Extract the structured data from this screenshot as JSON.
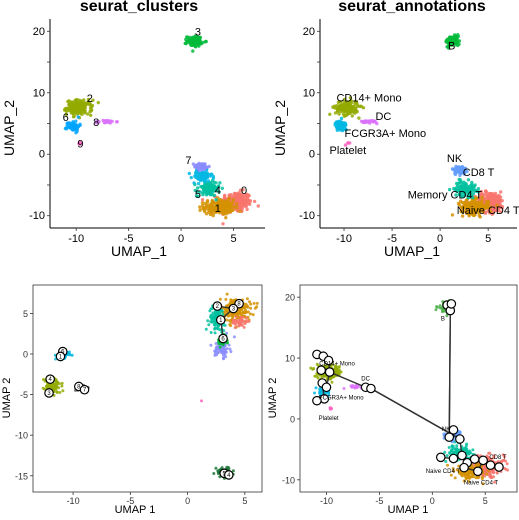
{
  "chart_data": [
    {
      "type": "scatter",
      "title": "seurat_clusters",
      "xlabel": "UMAP_1",
      "ylabel": "UMAP_2",
      "xlim": [
        -12.5,
        8
      ],
      "ylim": [
        -12,
        22
      ],
      "xticks": [
        -10,
        -5,
        0,
        5
      ],
      "yticks": [
        -10,
        -5,
        0,
        5,
        10,
        15,
        20
      ],
      "ytick_labels": [
        "-10",
        "",
        "0",
        "",
        "10",
        "",
        "20"
      ],
      "clusters": [
        {
          "label": "0",
          "color": "#F8766D",
          "cx": 5.2,
          "cy": -7.8,
          "sx": 1.3,
          "sy": 1.4,
          "n": 240
        },
        {
          "label": "1",
          "color": "#D39200",
          "cx": 3.6,
          "cy": -8.6,
          "sx": 1.2,
          "sy": 1.0,
          "n": 180
        },
        {
          "label": "2",
          "color": "#93AA00",
          "cx": -9.7,
          "cy": 7.6,
          "sx": 1.0,
          "sy": 1.0,
          "n": 150
        },
        {
          "label": "3",
          "color": "#00BA38",
          "cx": 1.3,
          "cy": 18.4,
          "sx": 0.6,
          "sy": 0.7,
          "n": 90
        },
        {
          "label": "4",
          "color": "#00C19F",
          "cx": 2.6,
          "cy": -5.6,
          "sx": 0.9,
          "sy": 1.0,
          "n": 110
        },
        {
          "label": "5",
          "color": "#00B9E3",
          "cx": 2.0,
          "cy": -3.6,
          "sx": 0.8,
          "sy": 0.8,
          "n": 70
        },
        {
          "label": "6",
          "color": "#00A5FF",
          "cx": -10.3,
          "cy": 4.6,
          "sx": 0.5,
          "sy": 0.7,
          "n": 60
        },
        {
          "label": "7",
          "color": "#8A8CFF",
          "cx": 2.0,
          "cy": -2.0,
          "sx": 0.6,
          "sy": 0.5,
          "n": 45
        },
        {
          "label": "8",
          "color": "#DB72FB",
          "cx": -7.2,
          "cy": 5.3,
          "sx": 0.8,
          "sy": 0.2,
          "n": 22
        },
        {
          "label": "9",
          "color": "#FF61C3",
          "cx": -9.7,
          "cy": 1.8,
          "sx": 0.2,
          "sy": 0.2,
          "n": 4
        }
      ],
      "labels": [
        {
          "text": "0",
          "x": 6.0,
          "y": -6.5
        },
        {
          "text": "1",
          "x": 3.5,
          "y": -9.4
        },
        {
          "text": "2",
          "x": -8.7,
          "y": 8.5
        },
        {
          "text": "3",
          "x": 1.6,
          "y": 19.3
        },
        {
          "text": "4",
          "x": 3.5,
          "y": -6.5
        },
        {
          "text": "5",
          "x": 1.6,
          "y": -7.1
        },
        {
          "text": "6",
          "x": -11.0,
          "y": 5.4
        },
        {
          "text": "7",
          "x": 0.7,
          "y": -1.6
        },
        {
          "text": "8",
          "x": -8.1,
          "y": 4.6
        },
        {
          "text": "9",
          "x": -9.6,
          "y": 1.1
        }
      ]
    },
    {
      "type": "scatter",
      "title": "seurat_annotations",
      "xlabel": "UMAP_1",
      "ylabel": "UMAP_2",
      "xlim": [
        -12.5,
        8
      ],
      "ylim": [
        -12,
        22
      ],
      "xticks": [
        -10,
        -5,
        0,
        5
      ],
      "yticks": [
        -10,
        -5,
        0,
        5,
        10,
        15,
        20
      ],
      "ytick_labels": [
        "-10",
        "",
        "0",
        "",
        "10",
        "",
        "20"
      ],
      "clusters": [
        {
          "label": "Naive CD4 T",
          "color": "#F8766D",
          "cx": 5.2,
          "cy": -7.8,
          "sx": 1.3,
          "sy": 1.4,
          "n": 240
        },
        {
          "label": "Memory CD4 T",
          "color": "#D39200",
          "cx": 3.6,
          "cy": -8.6,
          "sx": 1.2,
          "sy": 1.0,
          "n": 180
        },
        {
          "label": "CD14+ Mono",
          "color": "#93AA00",
          "cx": -9.7,
          "cy": 7.6,
          "sx": 1.0,
          "sy": 1.0,
          "n": 150
        },
        {
          "label": "B",
          "color": "#00BA38",
          "cx": 1.3,
          "cy": 18.4,
          "sx": 0.6,
          "sy": 0.7,
          "n": 90
        },
        {
          "label": "CD8 T",
          "color": "#00C19F",
          "cx": 2.6,
          "cy": -5.6,
          "sx": 0.9,
          "sy": 1.0,
          "n": 110
        },
        {
          "label": "FCGR3A+ Mono",
          "color": "#00B9E3",
          "cx": -10.3,
          "cy": 4.6,
          "sx": 0.5,
          "sy": 0.7,
          "n": 60
        },
        {
          "label": "NK",
          "color": "#619CFF",
          "cx": 2.0,
          "cy": -2.6,
          "sx": 0.6,
          "sy": 0.6,
          "n": 70
        },
        {
          "label": "DC",
          "color": "#DB72FB",
          "cx": -7.2,
          "cy": 5.3,
          "sx": 0.8,
          "sy": 0.2,
          "n": 22
        },
        {
          "label": "Platelet",
          "color": "#FF61C3",
          "cx": -9.7,
          "cy": 1.8,
          "sx": 0.2,
          "sy": 0.2,
          "n": 4
        }
      ],
      "labels": [
        {
          "text": "B",
          "x": 1.2,
          "y": 17.0
        },
        {
          "text": "CD14+ Mono",
          "x": -7.4,
          "y": 8.6
        },
        {
          "text": "DC",
          "x": -5.9,
          "y": 5.6
        },
        {
          "text": "FCGR3A+ Mono",
          "x": -5.7,
          "y": 2.8
        },
        {
          "text": "Platelet",
          "x": -9.6,
          "y": 0.0
        },
        {
          "text": "NK",
          "x": 1.5,
          "y": -1.3
        },
        {
          "text": "CD8 T",
          "x": 4.0,
          "y": -3.5
        },
        {
          "text": "Memory CD4 T",
          "x": 0.5,
          "y": -7.2
        },
        {
          "text": "Naive CD4 T",
          "x": 5.0,
          "y": -9.7
        }
      ]
    },
    {
      "type": "scatter",
      "title": "",
      "xlabel": "UMAP 1",
      "ylabel": "UMAP 2",
      "xlim": [
        -13.5,
        6.5
      ],
      "ylim": [
        -17,
        8.5
      ],
      "xticks": [
        -10,
        -5,
        0,
        5
      ],
      "yticks": [
        -15,
        -10,
        -5,
        0,
        5
      ],
      "clusters": [
        {
          "color": "#D39200",
          "cx": 4.2,
          "cy": 5.4,
          "sx": 1.1,
          "sy": 1.2,
          "n": 200
        },
        {
          "color": "#00C19F",
          "cx": 2.6,
          "cy": 4.4,
          "sx": 0.6,
          "sy": 1.3,
          "n": 100
        },
        {
          "color": "#F8766D",
          "cx": 4.6,
          "cy": 4.0,
          "sx": 0.6,
          "sy": 0.6,
          "n": 40
        },
        {
          "color": "#8A8CFF",
          "cx": 3.0,
          "cy": 0.8,
          "sx": 0.5,
          "sy": 1.0,
          "n": 80
        },
        {
          "color": "#00BA38",
          "cx": 3.0,
          "cy": 1.6,
          "sx": 0.4,
          "sy": 0.5,
          "n": 30
        },
        {
          "color": "#93AA00",
          "cx": -11.8,
          "cy": -3.9,
          "sx": 0.6,
          "sy": 0.8,
          "n": 110
        },
        {
          "color": "#00B9E3",
          "cx": -10.8,
          "cy": -0.2,
          "sx": 0.4,
          "sy": 0.4,
          "n": 30
        },
        {
          "color": "#666666",
          "cx": -9.3,
          "cy": -4.2,
          "sx": 0.6,
          "sy": 0.3,
          "n": 18
        },
        {
          "color": "#1B7837",
          "cx": 3.2,
          "cy": -14.6,
          "sx": 0.6,
          "sy": 0.5,
          "n": 80
        },
        {
          "color": "#FF61C3",
          "cx": 1.2,
          "cy": -5.7,
          "sx": 0.05,
          "sy": 0.05,
          "n": 1
        }
      ],
      "nodes": [
        {
          "text": "2",
          "x": 2.6,
          "y": 5.9
        },
        {
          "text": "8",
          "x": 4.5,
          "y": 6.2
        },
        {
          "text": "3",
          "x": 4.0,
          "y": 5.6
        },
        {
          "text": "1",
          "x": 2.9,
          "y": 4.2
        },
        {
          "text": "6",
          "x": 3.1,
          "y": 1.9
        },
        {
          "text": "6",
          "x": -10.9,
          "y": 0.3
        },
        {
          "text": "1",
          "x": -11.1,
          "y": -0.3
        },
        {
          "text": "4",
          "x": -12.0,
          "y": -3.1
        },
        {
          "text": "3",
          "x": -12.1,
          "y": -4.8
        },
        {
          "text": "8",
          "x": -9.5,
          "y": -4.0
        },
        {
          "text": "7",
          "x": -9.0,
          "y": -4.4
        },
        {
          "text": "5",
          "x": 3.2,
          "y": -14.7
        },
        {
          "text": "4",
          "x": 3.6,
          "y": -14.9
        }
      ],
      "edges": [
        [
          0,
          2
        ],
        [
          2,
          3
        ],
        [
          3,
          4
        ]
      ]
    },
    {
      "type": "scatter",
      "title": "",
      "xlabel": "UMAP 1",
      "ylabel": "UMAP 2",
      "xlim": [
        -12.5,
        8
      ],
      "ylim": [
        -12,
        22
      ],
      "xticks": [
        -10,
        -5,
        0,
        5
      ],
      "yticks": [
        -10,
        0,
        10,
        20
      ],
      "clusters": [
        {
          "color": "#F8766D",
          "cx": 5.2,
          "cy": -7.8,
          "sx": 1.3,
          "sy": 1.4,
          "n": 220
        },
        {
          "color": "#D39200",
          "cx": 3.6,
          "cy": -8.6,
          "sx": 1.2,
          "sy": 1.0,
          "n": 160
        },
        {
          "color": "#93AA00",
          "cx": -9.7,
          "cy": 7.6,
          "sx": 1.0,
          "sy": 1.0,
          "n": 140
        },
        {
          "color": "#4DAF4A",
          "cx": 1.3,
          "cy": 18.4,
          "sx": 0.6,
          "sy": 0.7,
          "n": 80
        },
        {
          "color": "#00C19F",
          "cx": 2.6,
          "cy": -5.6,
          "sx": 0.9,
          "sy": 1.0,
          "n": 100
        },
        {
          "color": "#00B9E3",
          "cx": -10.3,
          "cy": 4.6,
          "sx": 0.5,
          "sy": 0.7,
          "n": 55
        },
        {
          "color": "#619CFF",
          "cx": 2.0,
          "cy": -2.6,
          "sx": 0.6,
          "sy": 0.6,
          "n": 60
        },
        {
          "color": "#DB72FB",
          "cx": -7.2,
          "cy": 5.3,
          "sx": 0.8,
          "sy": 0.2,
          "n": 20
        },
        {
          "color": "#FF61C3",
          "cx": -9.7,
          "cy": 1.8,
          "sx": 0.2,
          "sy": 0.2,
          "n": 4
        }
      ],
      "labels": [
        {
          "text": "B",
          "x": 1.0,
          "y": 16.2
        },
        {
          "text": "CD14+ Mono",
          "x": -9.0,
          "y": 8.8
        },
        {
          "text": "DC",
          "x": -6.3,
          "y": 6.3
        },
        {
          "text": "FCGR3A+ Mono",
          "x": -8.6,
          "y": 3.2
        },
        {
          "text": "Platelet",
          "x": -9.8,
          "y": -0.2
        },
        {
          "text": "NK",
          "x": 1.3,
          "y": -2.0
        },
        {
          "text": "CD8 T",
          "x": 6.2,
          "y": -6.6
        },
        {
          "text": "Naive CD4 T",
          "x": 1.0,
          "y": -8.9
        },
        {
          "text": "Naive CD4 T",
          "x": 4.6,
          "y": -10.8
        }
      ],
      "nodes": [
        {
          "x": 1.4,
          "y": 18.7
        },
        {
          "x": 1.7,
          "y": 17.8
        },
        {
          "x": 1.8,
          "y": 18.9
        },
        {
          "x": 2.0,
          "y": -1.8
        },
        {
          "x": -10.9,
          "y": 10.6
        },
        {
          "x": -10.3,
          "y": 10.3
        },
        {
          "x": -9.8,
          "y": 9.6
        },
        {
          "x": -10.5,
          "y": 8.0
        },
        {
          "x": -9.7,
          "y": 7.7
        },
        {
          "x": -10.4,
          "y": 5.9
        },
        {
          "x": -10.0,
          "y": 5.2
        },
        {
          "x": -10.2,
          "y": 3.3
        },
        {
          "x": -10.9,
          "y": 3.0
        },
        {
          "x": -6.3,
          "y": 5.2
        },
        {
          "x": -5.8,
          "y": 5.0
        },
        {
          "x": 1.6,
          "y": -3.0
        },
        {
          "x": 2.6,
          "y": -3.3
        },
        {
          "x": 0.8,
          "y": -6.3
        },
        {
          "x": 2.0,
          "y": -6.5
        },
        {
          "x": 2.8,
          "y": -6.0
        },
        {
          "x": 3.3,
          "y": -7.2
        },
        {
          "x": 4.0,
          "y": -6.6
        },
        {
          "x": 4.8,
          "y": -6.8
        },
        {
          "x": 5.5,
          "y": -7.6
        },
        {
          "x": 6.3,
          "y": -7.9
        },
        {
          "x": 4.3,
          "y": -8.6
        },
        {
          "x": 3.0,
          "y": -8.0
        }
      ],
      "edges": [
        [
          4,
          5
        ],
        [
          5,
          6
        ],
        [
          6,
          8
        ],
        [
          8,
          7
        ],
        [
          8,
          10
        ],
        [
          10,
          9
        ],
        [
          9,
          11
        ],
        [
          11,
          12
        ],
        [
          8,
          13
        ],
        [
          13,
          14
        ],
        [
          14,
          16
        ],
        [
          1,
          15
        ],
        [
          16,
          19
        ],
        [
          19,
          18
        ],
        [
          18,
          17
        ],
        [
          19,
          20
        ],
        [
          20,
          21
        ],
        [
          21,
          22
        ],
        [
          22,
          23
        ],
        [
          23,
          24
        ],
        [
          22,
          25
        ],
        [
          25,
          26
        ]
      ]
    }
  ]
}
